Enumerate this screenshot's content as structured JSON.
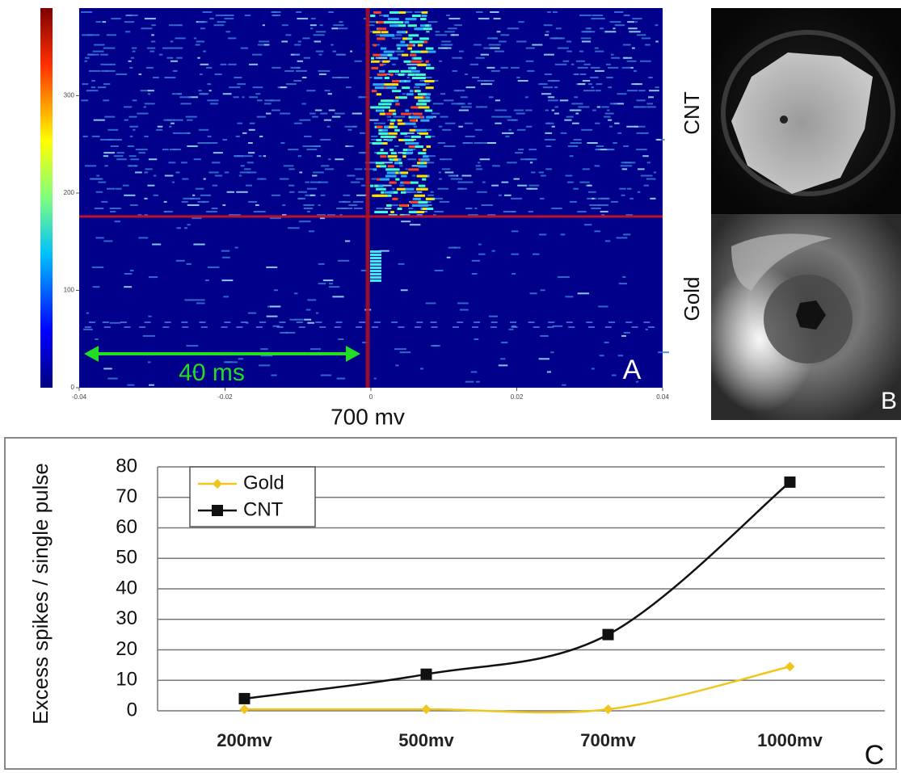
{
  "panel_a": {
    "label": "A",
    "interval_label": "40 ms",
    "xlabel": "700 mv",
    "xlim": [
      -0.04,
      0.04
    ],
    "xticks": [
      -0.04,
      -0.02,
      0,
      0.02,
      0.04
    ],
    "ylim": [
      0,
      390
    ],
    "yticks": [
      0,
      100,
      200,
      300
    ]
  },
  "panel_b": {
    "label": "B",
    "top_label": "CNT",
    "bottom_label": "Gold"
  },
  "chart_data": {
    "type": "line",
    "label": "C",
    "ylabel": "Excess spikes / single pulse",
    "categories": [
      "200mv",
      "500mv",
      "700mv",
      "1000mv"
    ],
    "series": [
      {
        "name": "Gold",
        "color": "#f2c51c",
        "marker": "diamond",
        "values": [
          0.5,
          0.5,
          0.5,
          14.5
        ]
      },
      {
        "name": "CNT",
        "color": "#111111",
        "marker": "square",
        "values": [
          4,
          12,
          25,
          75
        ]
      }
    ],
    "ylim": [
      0,
      80
    ],
    "yticks": [
      0,
      10,
      20,
      30,
      40,
      50,
      60,
      70,
      80
    ],
    "grid": true,
    "smooth": true,
    "legend": "top-left"
  }
}
